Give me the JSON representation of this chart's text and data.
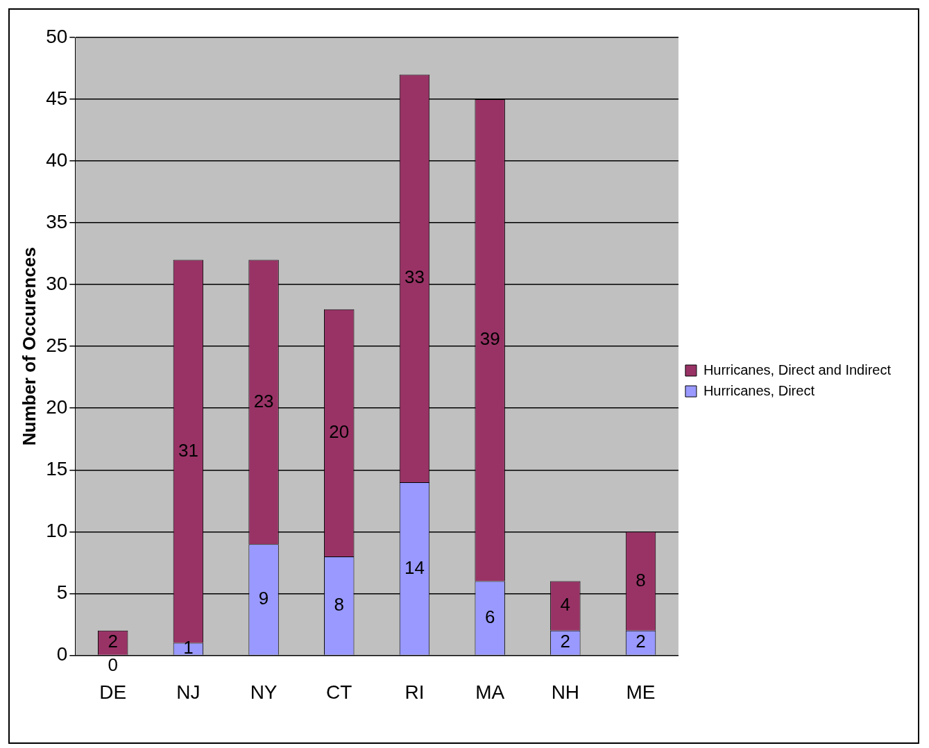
{
  "chart_data": {
    "type": "bar",
    "ylabel": "Number of Occurences",
    "categories": [
      "DE",
      "NJ",
      "NY",
      "CT",
      "RI",
      "MA",
      "NH",
      "ME"
    ],
    "series": [
      {
        "name": "Hurricanes, Direct",
        "color": "#9999ff",
        "values": [
          0,
          1,
          9,
          8,
          14,
          6,
          2,
          2
        ]
      },
      {
        "name": "Hurricanes, Direct and Indirect",
        "color": "#993366",
        "values": [
          2,
          31,
          23,
          20,
          33,
          39,
          4,
          8
        ]
      }
    ],
    "stacked": true,
    "ylim": [
      0,
      50
    ],
    "yticks": [
      0,
      5,
      10,
      15,
      20,
      25,
      30,
      35,
      40,
      45,
      50
    ],
    "grid": "y",
    "legend": "right",
    "data_labels": true
  }
}
